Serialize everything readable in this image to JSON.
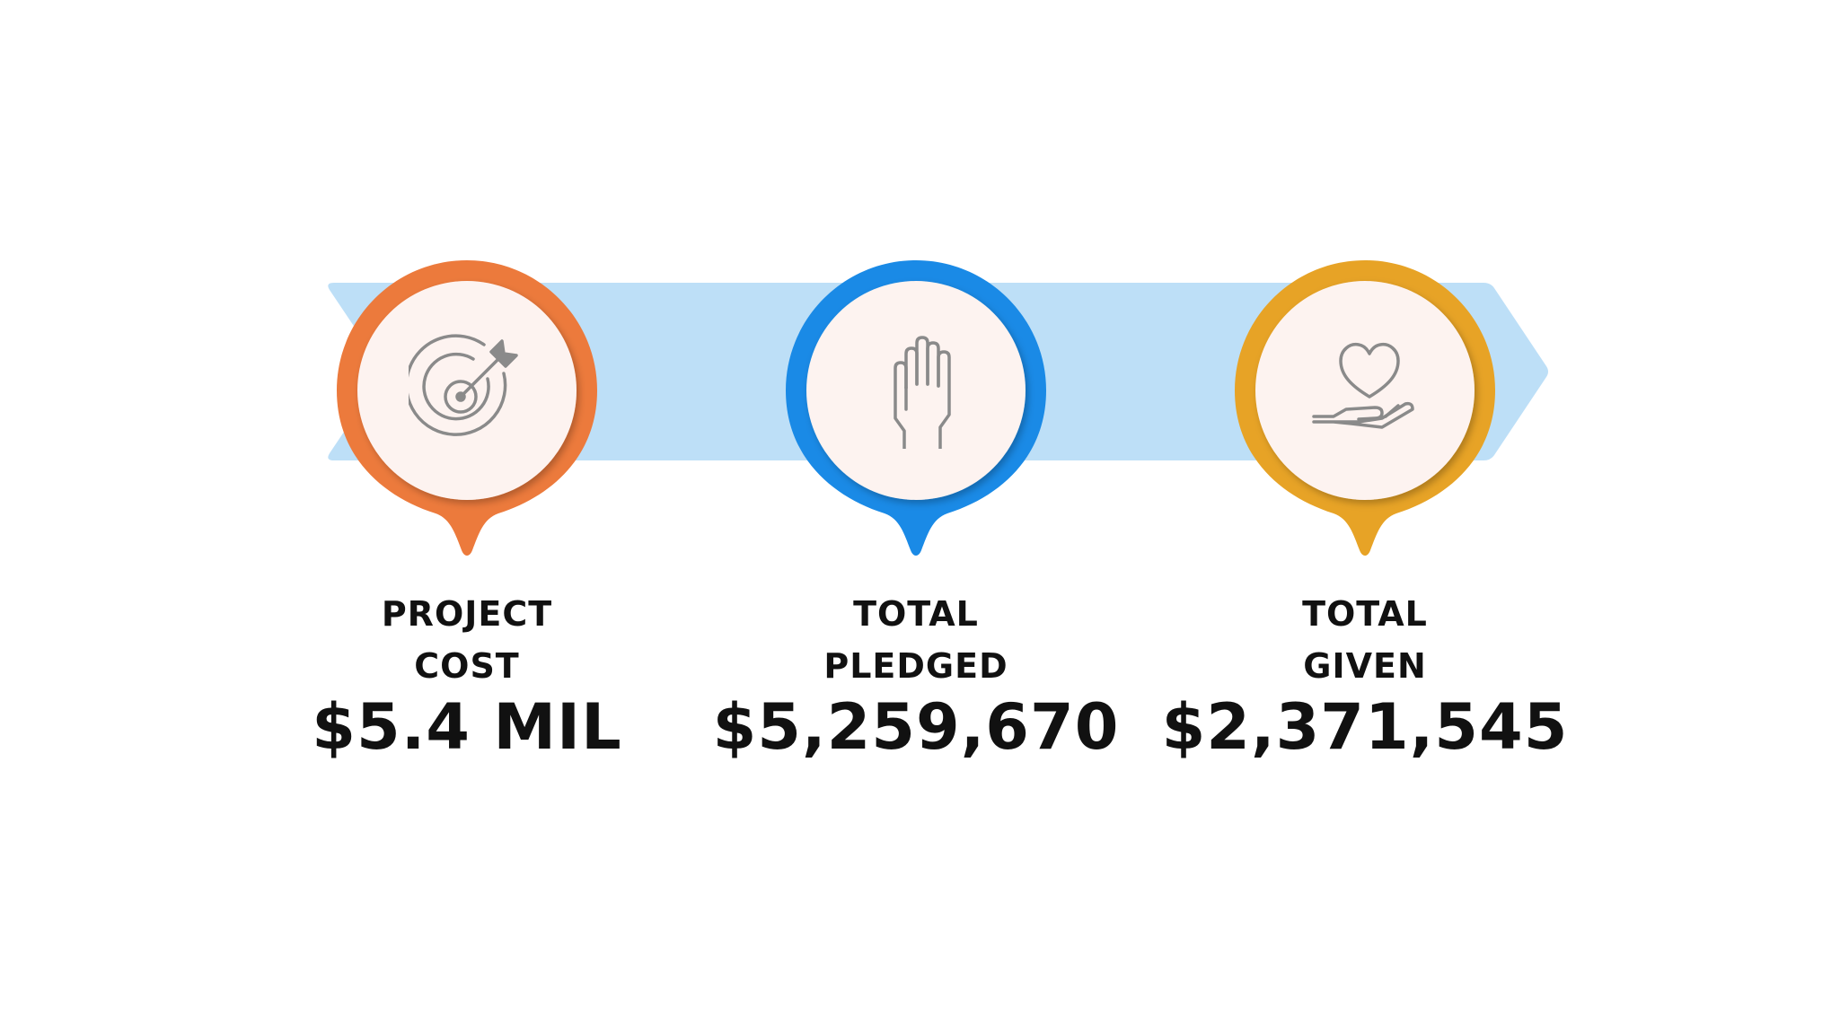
{
  "colors": {
    "band": "#bddff7",
    "orange": "#ec7a3c",
    "blue": "#1a8ae6",
    "gold": "#e7a326",
    "inner": "#fdf3f0",
    "icon_stroke": "#8a8a8a"
  },
  "milestones": [
    {
      "label_line1": "PROJECT",
      "label_line2": "COST",
      "value": "$5.4 MIL",
      "icon": "target-icon"
    },
    {
      "label_line1": "TOTAL",
      "label_line2": "PLEDGED",
      "value": "$5,259,670",
      "icon": "raised-hand-icon"
    },
    {
      "label_line1": "TOTAL",
      "label_line2": "GIVEN",
      "value": "$2,371,545",
      "icon": "hand-heart-icon"
    }
  ]
}
